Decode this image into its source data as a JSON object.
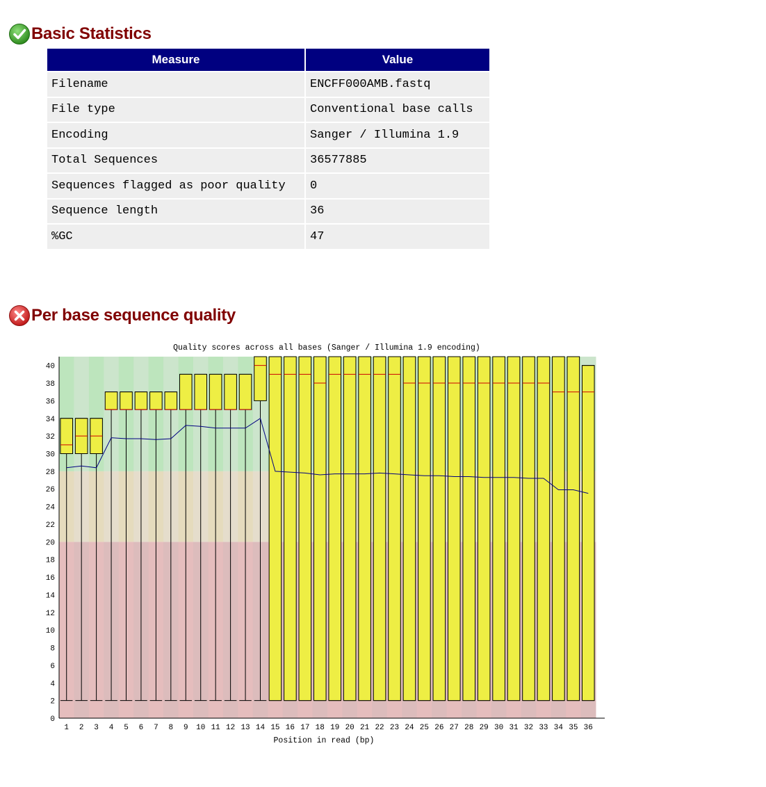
{
  "basic_statistics": {
    "title": "Basic Statistics",
    "status": "pass",
    "headers": [
      "Measure",
      "Value"
    ],
    "rows": [
      [
        "Filename",
        "ENCFF000AMB.fastq"
      ],
      [
        "File type",
        "Conventional base calls"
      ],
      [
        "Encoding",
        "Sanger / Illumina 1.9"
      ],
      [
        "Total Sequences",
        "36577885"
      ],
      [
        "Sequences flagged as poor quality",
        "0"
      ],
      [
        "Sequence length",
        "36"
      ],
      [
        "%GC",
        "47"
      ]
    ]
  },
  "per_base_quality": {
    "title": "Per base sequence quality",
    "status": "fail"
  },
  "icons": {
    "pass": "check-circle-icon",
    "fail": "cross-circle-icon"
  },
  "colors": {
    "heading": "#800000",
    "table_header": "#000080",
    "box_fill": "#EEEE44",
    "median": "#CC0000",
    "mean_line": "#000080",
    "zone_good": "#BDE5BD",
    "zone_warn": "#E5DBBD",
    "zone_bad": "#E5BDBD"
  },
  "chart_data": {
    "type": "box",
    "title": "Quality scores across all bases (Sanger / Illumina 1.9 encoding)",
    "xlabel": "Position in read (bp)",
    "ylabel": "",
    "ylim": [
      0,
      41
    ],
    "yticks": [
      0,
      2,
      4,
      6,
      8,
      10,
      12,
      14,
      16,
      18,
      20,
      22,
      24,
      26,
      28,
      30,
      32,
      34,
      36,
      38,
      40
    ],
    "categories": [
      "1",
      "2",
      "3",
      "4",
      "5",
      "6",
      "7",
      "8",
      "9",
      "10",
      "11",
      "12",
      "13",
      "14",
      "15",
      "16",
      "17",
      "18",
      "19",
      "20",
      "21",
      "22",
      "23",
      "24",
      "25",
      "26",
      "27",
      "28",
      "29",
      "30",
      "31",
      "32",
      "33",
      "34",
      "35",
      "36"
    ],
    "zones": [
      {
        "from": 0,
        "to": 20,
        "quality": "bad"
      },
      {
        "from": 20,
        "to": 28,
        "quality": "warning"
      },
      {
        "from": 28,
        "to": 41,
        "quality": "good"
      }
    ],
    "boxes": [
      {
        "q1": 30,
        "q3": 34,
        "median": 31,
        "low": 2,
        "high": 34
      },
      {
        "q1": 30,
        "q3": 34,
        "median": 32,
        "low": 2,
        "high": 34
      },
      {
        "q1": 30,
        "q3": 34,
        "median": 32,
        "low": 2,
        "high": 34
      },
      {
        "q1": 35,
        "q3": 37,
        "median": 35,
        "low": 2,
        "high": 37
      },
      {
        "q1": 35,
        "q3": 37,
        "median": 35,
        "low": 2,
        "high": 37
      },
      {
        "q1": 35,
        "q3": 37,
        "median": 35,
        "low": 2,
        "high": 37
      },
      {
        "q1": 35,
        "q3": 37,
        "median": 35,
        "low": 2,
        "high": 37
      },
      {
        "q1": 35,
        "q3": 37,
        "median": 35,
        "low": 2,
        "high": 37
      },
      {
        "q1": 35,
        "q3": 39,
        "median": 35,
        "low": 2,
        "high": 39
      },
      {
        "q1": 35,
        "q3": 39,
        "median": 35,
        "low": 2,
        "high": 39
      },
      {
        "q1": 35,
        "q3": 39,
        "median": 35,
        "low": 2,
        "high": 39
      },
      {
        "q1": 35,
        "q3": 39,
        "median": 35,
        "low": 2,
        "high": 39
      },
      {
        "q1": 35,
        "q3": 39,
        "median": 35,
        "low": 2,
        "high": 39
      },
      {
        "q1": 36,
        "q3": 41,
        "median": 40,
        "low": 2,
        "high": 41
      },
      {
        "q1": 2,
        "q3": 41,
        "median": 39,
        "low": 2,
        "high": 41
      },
      {
        "q1": 2,
        "q3": 41,
        "median": 39,
        "low": 2,
        "high": 41
      },
      {
        "q1": 2,
        "q3": 41,
        "median": 39,
        "low": 2,
        "high": 41
      },
      {
        "q1": 2,
        "q3": 41,
        "median": 38,
        "low": 2,
        "high": 41
      },
      {
        "q1": 2,
        "q3": 41,
        "median": 39,
        "low": 2,
        "high": 41
      },
      {
        "q1": 2,
        "q3": 41,
        "median": 39,
        "low": 2,
        "high": 41
      },
      {
        "q1": 2,
        "q3": 41,
        "median": 39,
        "low": 2,
        "high": 41
      },
      {
        "q1": 2,
        "q3": 41,
        "median": 39,
        "low": 2,
        "high": 41
      },
      {
        "q1": 2,
        "q3": 41,
        "median": 39,
        "low": 2,
        "high": 41
      },
      {
        "q1": 2,
        "q3": 41,
        "median": 38,
        "low": 2,
        "high": 41
      },
      {
        "q1": 2,
        "q3": 41,
        "median": 38,
        "low": 2,
        "high": 41
      },
      {
        "q1": 2,
        "q3": 41,
        "median": 38,
        "low": 2,
        "high": 41
      },
      {
        "q1": 2,
        "q3": 41,
        "median": 38,
        "low": 2,
        "high": 41
      },
      {
        "q1": 2,
        "q3": 41,
        "median": 38,
        "low": 2,
        "high": 41
      },
      {
        "q1": 2,
        "q3": 41,
        "median": 38,
        "low": 2,
        "high": 41
      },
      {
        "q1": 2,
        "q3": 41,
        "median": 38,
        "low": 2,
        "high": 41
      },
      {
        "q1": 2,
        "q3": 41,
        "median": 38,
        "low": 2,
        "high": 41
      },
      {
        "q1": 2,
        "q3": 41,
        "median": 38,
        "low": 2,
        "high": 41
      },
      {
        "q1": 2,
        "q3": 41,
        "median": 38,
        "low": 2,
        "high": 41
      },
      {
        "q1": 2,
        "q3": 41,
        "median": 37,
        "low": 2,
        "high": 41
      },
      {
        "q1": 2,
        "q3": 41,
        "median": 37,
        "low": 2,
        "high": 41
      },
      {
        "q1": 2,
        "q3": 40,
        "median": 37,
        "low": 2,
        "high": 40
      }
    ],
    "mean": [
      28.4,
      28.6,
      28.4,
      31.8,
      31.7,
      31.7,
      31.6,
      31.7,
      33.2,
      33.1,
      32.9,
      32.9,
      32.9,
      34.0,
      28.0,
      27.9,
      27.8,
      27.6,
      27.7,
      27.7,
      27.7,
      27.8,
      27.7,
      27.6,
      27.5,
      27.5,
      27.4,
      27.4,
      27.3,
      27.3,
      27.3,
      27.2,
      27.2,
      25.9,
      25.9,
      25.5
    ]
  }
}
